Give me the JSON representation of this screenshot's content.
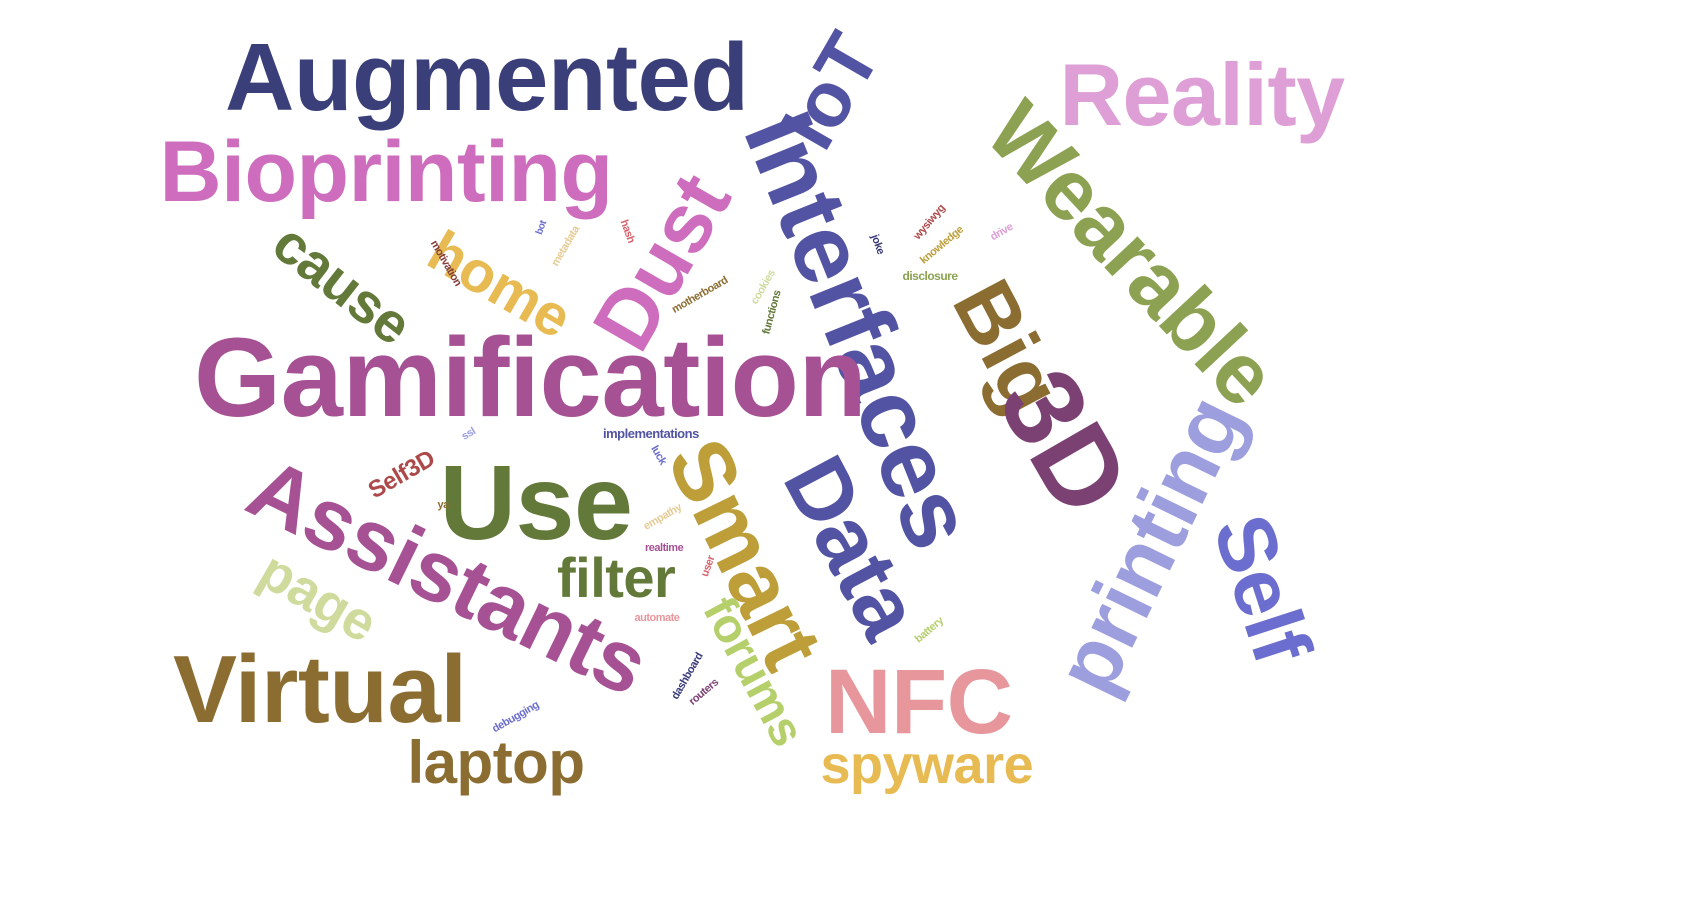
{
  "words": [
    {
      "text": "Augmented",
      "color": "#3a3f7a"
    },
    {
      "text": "Reality",
      "color": "#de9ed6"
    },
    {
      "text": "Bioprinting",
      "color": "#ce6dbd"
    },
    {
      "text": "IoT",
      "color": "#5254a3"
    },
    {
      "text": "Interfaces",
      "color": "#5254a3"
    },
    {
      "text": "Wearable",
      "color": "#8ca252"
    },
    {
      "text": "Dust",
      "color": "#ce6dbd"
    },
    {
      "text": "home",
      "color": "#e7ba52"
    },
    {
      "text": "cause",
      "color": "#637939"
    },
    {
      "text": "Gamification",
      "color": "#a55194"
    },
    {
      "text": "Big",
      "color": "#8c6d31"
    },
    {
      "text": "3D",
      "color": "#7b4173"
    },
    {
      "text": "Data",
      "color": "#5254a3"
    },
    {
      "text": "printing",
      "color": "#9c9ede"
    },
    {
      "text": "Self",
      "color": "#6b6ecf"
    },
    {
      "text": "Smart",
      "color": "#bd9e39"
    },
    {
      "text": "Use",
      "color": "#637939"
    },
    {
      "text": "Assistants",
      "color": "#a55194"
    },
    {
      "text": "filter",
      "color": "#637939"
    },
    {
      "text": "page",
      "color": "#cedb9c"
    },
    {
      "text": "forums",
      "color": "#b5cf6b"
    },
    {
      "text": "Virtual",
      "color": "#8c6d31"
    },
    {
      "text": "NFC",
      "color": "#e7969c"
    },
    {
      "text": "laptop",
      "color": "#8c6d31"
    },
    {
      "text": "spyware",
      "color": "#e7ba52"
    },
    {
      "text": "Self3D",
      "color": "#ad494a"
    },
    {
      "text": "motivation",
      "color": "#843c39"
    },
    {
      "text": "metadata",
      "color": "#e7cb94"
    },
    {
      "text": "bot",
      "color": "#6b6ecf"
    },
    {
      "text": "hash",
      "color": "#d6616b"
    },
    {
      "text": "motherboard",
      "color": "#8c6d31"
    },
    {
      "text": "cookies",
      "color": "#cedb9c"
    },
    {
      "text": "functions",
      "color": "#637939"
    },
    {
      "text": "joke",
      "color": "#393b79"
    },
    {
      "text": "wysiwyg",
      "color": "#ad494a"
    },
    {
      "text": "knowledge",
      "color": "#bd9e39"
    },
    {
      "text": "drive",
      "color": "#de9ed6"
    },
    {
      "text": "disclosure",
      "color": "#8ca252"
    },
    {
      "text": "implementations",
      "color": "#5254a3"
    },
    {
      "text": "ssl",
      "color": "#9c9ede"
    },
    {
      "text": "luck",
      "color": "#6b6ecf"
    },
    {
      "text": "ya",
      "color": "#8c6d31"
    },
    {
      "text": "empathy",
      "color": "#e7cb94"
    },
    {
      "text": "realtime",
      "color": "#a55194"
    },
    {
      "text": "user",
      "color": "#d6616b"
    },
    {
      "text": "automate",
      "color": "#e7969c"
    },
    {
      "text": "battery",
      "color": "#b5cf6b"
    },
    {
      "text": "dashboard",
      "color": "#393b79"
    },
    {
      "text": "routers",
      "color": "#7b4173"
    },
    {
      "text": "debugging",
      "color": "#6b6ecf"
    }
  ]
}
